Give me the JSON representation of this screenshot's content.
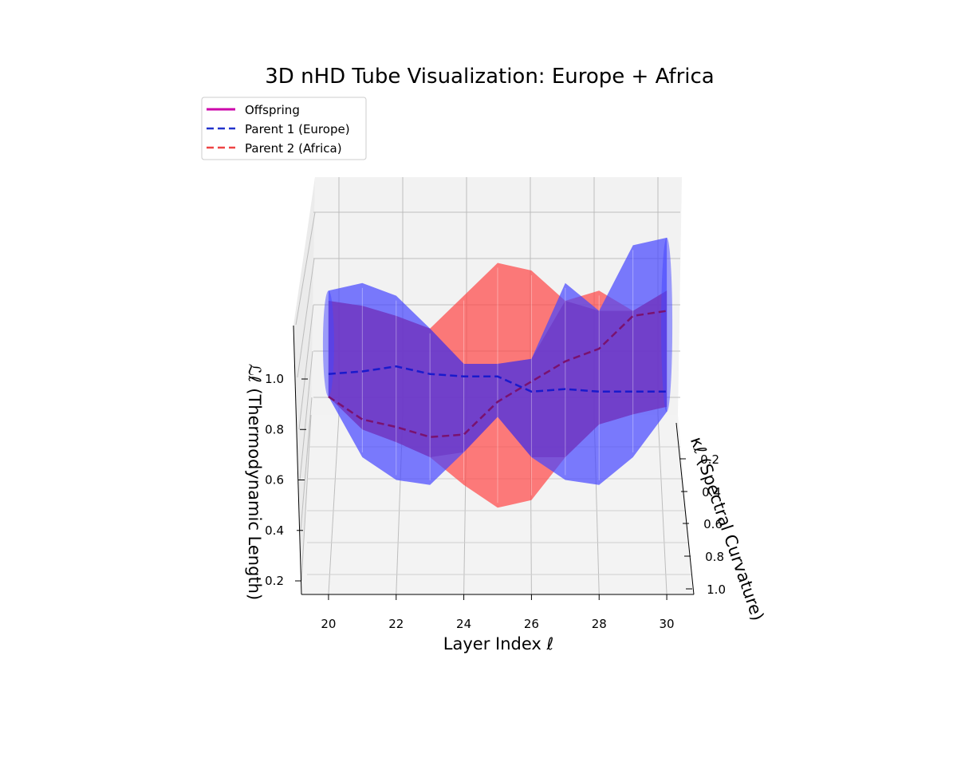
{
  "chart_data": {
    "type": "3d-tube",
    "title": "3D nHD Tube Visualization: Europe + Africa",
    "xlabel": "Layer Index ℓ",
    "ylabel": "κℓ (Spectral Curvature)",
    "zlabel": "ℒℓ (Thermodynamic Length)",
    "x_ticks": [
      "20",
      "22",
      "24",
      "26",
      "28",
      "30"
    ],
    "y_ticks": [
      "0.2",
      "0.4",
      "0.6",
      "0.8",
      "1.0"
    ],
    "z_ticks": [
      "0.2",
      "0.4",
      "0.6",
      "0.8",
      "1.0"
    ],
    "xlim": [
      19.2,
      30.8
    ],
    "zlim": [
      0.1,
      1.6
    ],
    "grid": true,
    "legend_position": "top-left",
    "series": [
      {
        "name": "Offspring",
        "style": "solid",
        "color": "#cc00aa",
        "x": [
          20,
          21,
          22,
          23,
          24,
          25,
          26,
          27,
          28,
          29,
          30
        ],
        "z": [
          0.93,
          0.84,
          0.81,
          0.77,
          0.78,
          0.91,
          0.99,
          1.07,
          1.12,
          1.25,
          1.27
        ]
      },
      {
        "name": "Parent 1 (Europe)",
        "style": "dashed",
        "color": "#2233cc",
        "x": [
          20,
          21,
          22,
          23,
          24,
          25,
          26,
          27,
          28,
          29,
          30
        ],
        "z": [
          1.02,
          1.03,
          1.05,
          1.02,
          1.01,
          1.01,
          0.95,
          0.96,
          0.95,
          0.95,
          0.95
        ],
        "tube_upper": [
          1.35,
          1.38,
          1.33,
          1.2,
          1.06,
          1.06,
          1.08,
          1.38,
          1.27,
          1.53,
          1.56
        ],
        "tube_lower": [
          0.93,
          0.69,
          0.6,
          0.58,
          0.71,
          0.85,
          0.69,
          0.6,
          0.58,
          0.69,
          0.87
        ]
      },
      {
        "name": "Parent 2 (Africa)",
        "style": "dashed",
        "color": "#ee4444",
        "x": [
          20,
          21,
          22,
          23,
          24,
          25,
          26,
          27,
          28,
          29,
          30
        ],
        "z": [
          0.93,
          0.84,
          0.81,
          0.77,
          0.78,
          0.91,
          0.99,
          1.07,
          1.12,
          1.25,
          1.27
        ],
        "tube_upper": [
          1.31,
          1.29,
          1.25,
          1.2,
          1.33,
          1.46,
          1.43,
          1.31,
          1.35,
          1.27,
          1.35
        ],
        "tube_lower": [
          0.93,
          0.8,
          0.75,
          0.69,
          0.58,
          0.49,
          0.52,
          0.69,
          0.82,
          0.86,
          0.89
        ]
      }
    ],
    "colors": {
      "parent1_fill": "#4444ff",
      "parent2_fill": "#ff4444",
      "pane": "#f2f2f2",
      "grid": "#b8b8b8"
    }
  }
}
